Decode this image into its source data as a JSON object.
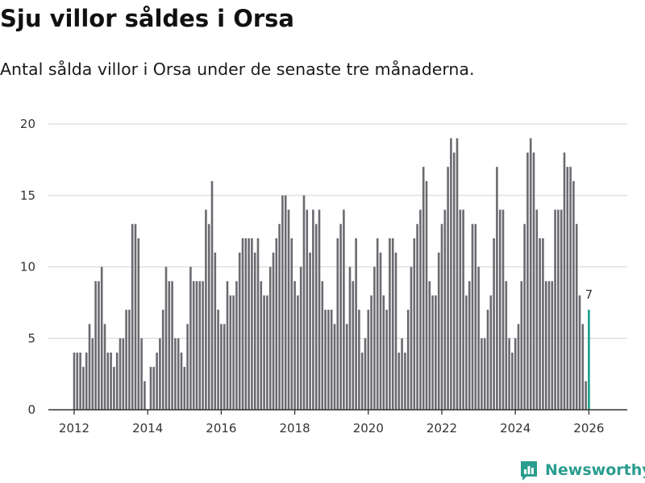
{
  "title": "Sju villor såldes i Orsa",
  "subtitle": "Antal sålda villor i Orsa under de senaste tre månaderna.",
  "brand": {
    "name": "Newsworthy",
    "color": "#2a9d8f"
  },
  "colors": {
    "bar": "#6b6a70",
    "highlight": "#1a9e8c",
    "grid": "#dcdcdc",
    "axis": "#333333"
  },
  "chart_data": {
    "type": "bar",
    "title": "Sju villor såldes i Orsa",
    "xlabel": "",
    "ylabel": "",
    "ylim": [
      0,
      20
    ],
    "yticks": [
      "0",
      "5",
      "10",
      "15",
      "20"
    ],
    "xticks": [
      "2012",
      "2014",
      "2016",
      "2018",
      "2020",
      "2022",
      "2024",
      "2026"
    ],
    "start": "2012-01",
    "period": "monthly, rolling 3-month total",
    "values": [
      4,
      4,
      4,
      3,
      4,
      6,
      5,
      9,
      9,
      10,
      6,
      4,
      4,
      3,
      4,
      5,
      5,
      7,
      7,
      13,
      13,
      12,
      5,
      2,
      0,
      3,
      3,
      4,
      5,
      7,
      10,
      9,
      9,
      5,
      5,
      4,
      3,
      6,
      10,
      9,
      9,
      9,
      9,
      14,
      13,
      16,
      11,
      7,
      6,
      6,
      9,
      8,
      8,
      9,
      11,
      12,
      12,
      12,
      12,
      11,
      12,
      9,
      8,
      8,
      10,
      11,
      12,
      13,
      15,
      15,
      14,
      12,
      9,
      8,
      10,
      15,
      14,
      11,
      14,
      13,
      14,
      9,
      7,
      7,
      7,
      6,
      12,
      13,
      14,
      6,
      10,
      9,
      12,
      7,
      4,
      5,
      7,
      8,
      10,
      12,
      11,
      8,
      7,
      12,
      12,
      11,
      4,
      5,
      4,
      7,
      10,
      12,
      13,
      14,
      17,
      16,
      9,
      8,
      8,
      11,
      13,
      14,
      17,
      19,
      18,
      19,
      14,
      14,
      8,
      9,
      13,
      13,
      10,
      5,
      5,
      7,
      8,
      12,
      17,
      14,
      14,
      9,
      5,
      4,
      5,
      6,
      9,
      13,
      18,
      19,
      18,
      14,
      12,
      12,
      9,
      9,
      9,
      14,
      14,
      14,
      18,
      17,
      17,
      16,
      13,
      8,
      6,
      2,
      7
    ],
    "highlight": {
      "label": "7",
      "value": 7,
      "period": "2026-02"
    }
  }
}
